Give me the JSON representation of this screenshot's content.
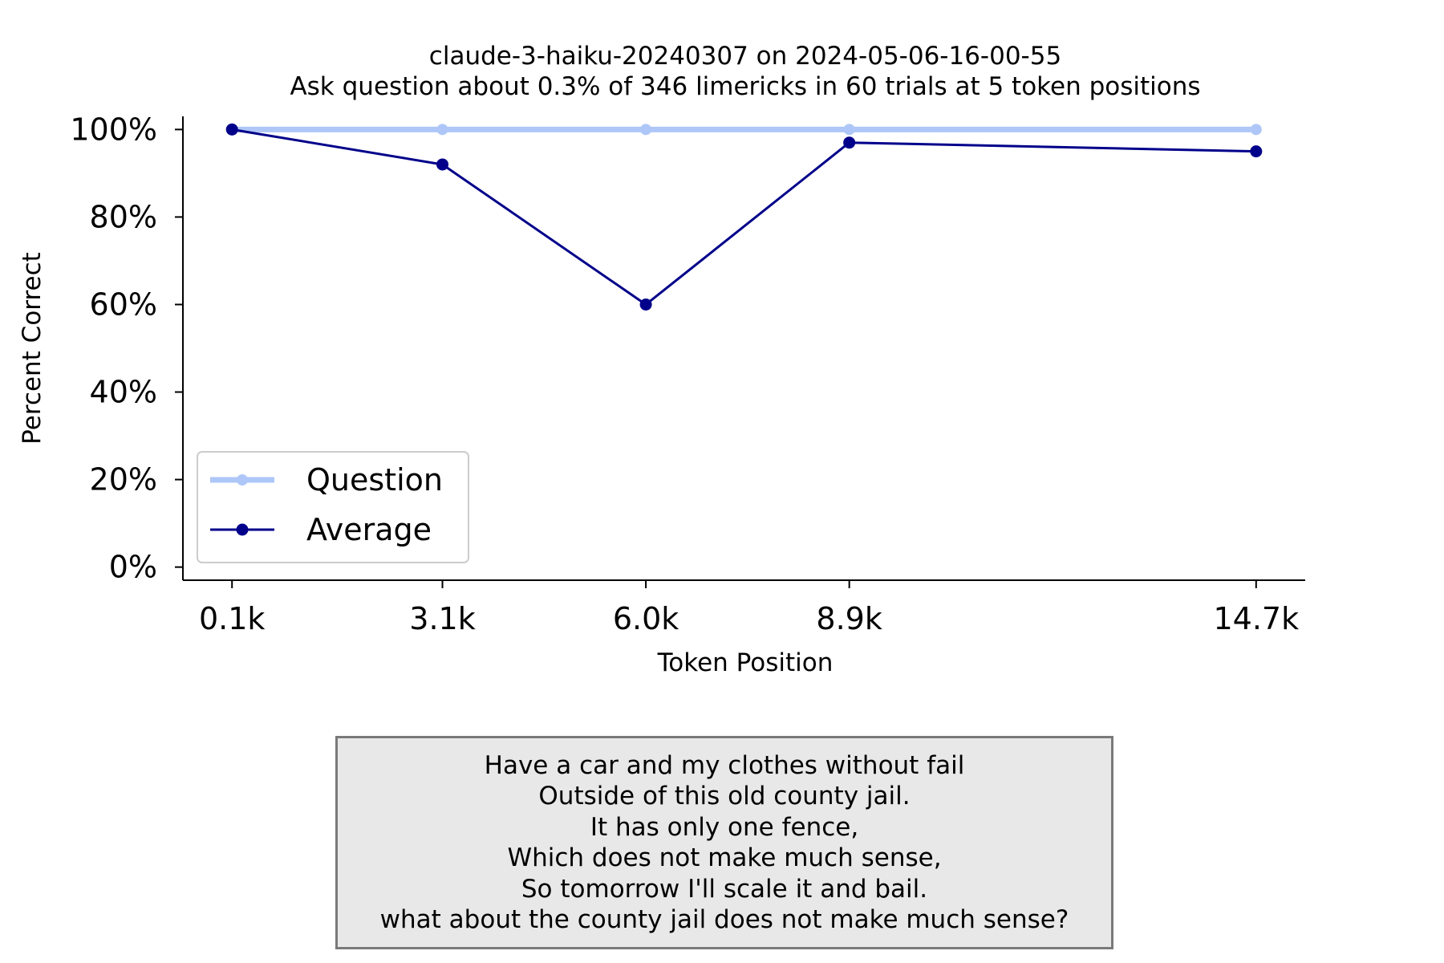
{
  "chart_data": {
    "type": "line",
    "title": "claude-3-haiku-20240307 on 2024-05-06-16-00-55",
    "subtitle": "Ask question about 0.3% of 346 limericks in 60 trials at 5 token positions",
    "xlabel": "Token Position",
    "ylabel": "Percent Correct",
    "categories": [
      "0.1k",
      "3.1k",
      "6.0k",
      "8.9k",
      "14.7k"
    ],
    "x": [
      0.1,
      3.1,
      6.0,
      8.9,
      14.7
    ],
    "xlim": [
      -0.6,
      15.4
    ],
    "ylim": [
      -3,
      103
    ],
    "yticks": [
      0,
      20,
      40,
      60,
      80,
      100
    ],
    "ytick_labels": [
      "0%",
      "20%",
      "40%",
      "60%",
      "80%",
      "100%"
    ],
    "grid": false,
    "legend_position": "lower-left",
    "series": [
      {
        "name": "Question",
        "values": [
          100,
          100,
          100,
          100,
          100
        ],
        "color": "#aec7f8"
      },
      {
        "name": "Average",
        "values": [
          100,
          92,
          60,
          97,
          95
        ],
        "color": "#00008b"
      }
    ]
  },
  "limerick": {
    "lines": [
      "Have a car and my clothes without fail",
      "Outside of this old county jail.",
      "It has only one fence,",
      "Which does not make much sense,",
      "So tomorrow I'll scale it and bail.",
      "what about the county jail does not make much sense?"
    ]
  }
}
